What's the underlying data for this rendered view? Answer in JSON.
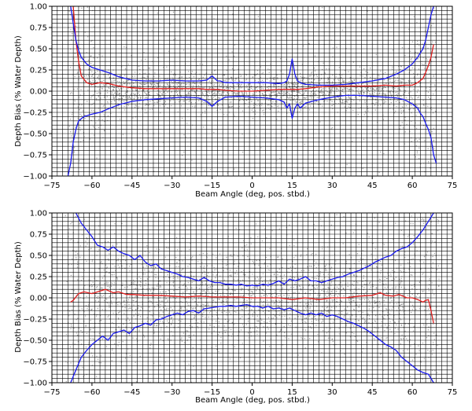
{
  "colors": {
    "scatter": "#808080",
    "mean_line": "#e02020",
    "std_lines": "#1a1aee",
    "grid": "#000000",
    "background": "#ffffff"
  },
  "chart_data": [
    {
      "type": "scatter",
      "xlabel": "Beam Angle (deg, pos. stbd.)",
      "ylabel": "Depth Bias (% Water Depth)",
      "xlim": [
        -75,
        75
      ],
      "ylim": [
        -1.0,
        1.0
      ],
      "xticks": [
        -75,
        -60,
        -45,
        -30,
        -15,
        0,
        15,
        30,
        45,
        60,
        75
      ],
      "xtick_labels": [
        "−75",
        "−60",
        "−45",
        "−30",
        "−15",
        "0",
        "15",
        "30",
        "45",
        "60",
        "75"
      ],
      "yticks": [
        -1.0,
        -0.75,
        -0.5,
        -0.25,
        0.0,
        0.25,
        0.5,
        0.75,
        1.0
      ],
      "ytick_labels": [
        "−1.00",
        "−0.75",
        "−0.50",
        "−0.25",
        "0.00",
        "0.25",
        "0.50",
        "0.75",
        "1.00"
      ],
      "grid": "on (vertical every 2 deg, horizontal every 0.05)",
      "scatter_extent_deg": [
        -69,
        69
      ],
      "series": [
        {
          "style": "line",
          "color": "#e02020",
          "x": [
            -67,
            -66,
            -65,
            -64,
            -62,
            -60,
            -57,
            -54,
            -50,
            -45,
            -40,
            -35,
            -30,
            -25,
            -20,
            -17,
            -15,
            -13,
            -10,
            -5,
            0,
            5,
            10,
            13,
            15,
            17,
            20,
            25,
            30,
            35,
            40,
            45,
            50,
            54,
            57,
            60,
            62,
            64,
            65,
            66,
            67,
            68
          ],
          "y": [
            1.0,
            0.6,
            0.35,
            0.18,
            0.1,
            0.08,
            0.1,
            0.09,
            0.06,
            0.04,
            0.03,
            0.03,
            0.03,
            0.03,
            0.03,
            0.02,
            0.02,
            0.02,
            0.01,
            0.0,
            0.0,
            0.01,
            0.02,
            0.02,
            0.02,
            0.02,
            0.03,
            0.05,
            0.06,
            0.06,
            0.06,
            0.06,
            0.07,
            0.06,
            0.07,
            0.07,
            0.1,
            0.15,
            0.22,
            0.3,
            0.4,
            0.55
          ]
        },
        {
          "style": "line",
          "color": "#1a1aee",
          "x": [
            -68,
            -67,
            -66,
            -65,
            -64,
            -62,
            -60,
            -57,
            -54,
            -50,
            -45,
            -40,
            -35,
            -30,
            -25,
            -20,
            -17,
            -15,
            -13,
            -12,
            -10,
            -5,
            0,
            5,
            10,
            12,
            13,
            14,
            15,
            16,
            17,
            18,
            20,
            25,
            30,
            35,
            40,
            45,
            50,
            54,
            57,
            60,
            62,
            64,
            65,
            66,
            67,
            68
          ],
          "y": [
            1.0,
            0.8,
            0.6,
            0.48,
            0.4,
            0.32,
            0.28,
            0.25,
            0.22,
            0.17,
            0.13,
            0.12,
            0.12,
            0.13,
            0.12,
            0.12,
            0.13,
            0.18,
            0.12,
            0.12,
            0.1,
            0.1,
            0.1,
            0.1,
            0.09,
            0.1,
            0.12,
            0.2,
            0.38,
            0.2,
            0.12,
            0.1,
            0.08,
            0.07,
            0.07,
            0.08,
            0.1,
            0.12,
            0.15,
            0.2,
            0.25,
            0.32,
            0.4,
            0.5,
            0.6,
            0.75,
            0.9,
            1.0
          ]
        },
        {
          "style": "line",
          "color": "#1a1aee",
          "x": [
            -69,
            -68,
            -67,
            -66,
            -65,
            -63,
            -60,
            -57,
            -54,
            -50,
            -45,
            -40,
            -35,
            -30,
            -25,
            -20,
            -17,
            -15,
            -13,
            -10,
            -5,
            0,
            5,
            10,
            12,
            13,
            14,
            15,
            16,
            17,
            18,
            20,
            25,
            30,
            35,
            40,
            45,
            50,
            54,
            57,
            60,
            62,
            63,
            64,
            65,
            66,
            67,
            68,
            69
          ],
          "y": [
            -1.0,
            -0.85,
            -0.6,
            -0.45,
            -0.35,
            -0.3,
            -0.27,
            -0.25,
            -0.21,
            -0.16,
            -0.12,
            -0.1,
            -0.09,
            -0.08,
            -0.07,
            -0.08,
            -0.12,
            -0.18,
            -0.12,
            -0.07,
            -0.06,
            -0.07,
            -0.08,
            -0.1,
            -0.13,
            -0.2,
            -0.15,
            -0.32,
            -0.2,
            -0.15,
            -0.2,
            -0.14,
            -0.1,
            -0.07,
            -0.05,
            -0.05,
            -0.06,
            -0.07,
            -0.08,
            -0.1,
            -0.15,
            -0.2,
            -0.26,
            -0.3,
            -0.38,
            -0.45,
            -0.55,
            -0.75,
            -0.85
          ]
        }
      ]
    },
    {
      "type": "scatter",
      "xlabel": "Beam Angle (deg, pos. stbd.)",
      "ylabel": "Depth Bias (% Water Depth)",
      "xlim": [
        -75,
        75
      ],
      "ylim": [
        -1.0,
        1.0
      ],
      "xticks": [
        -75,
        -60,
        -45,
        -30,
        -15,
        0,
        15,
        30,
        45,
        60,
        75
      ],
      "xtick_labels": [
        "−75",
        "−60",
        "−45",
        "−30",
        "−15",
        "0",
        "15",
        "30",
        "45",
        "60",
        "75"
      ],
      "yticks": [
        -1.0,
        -0.75,
        -0.5,
        -0.25,
        0.0,
        0.25,
        0.5,
        0.75,
        1.0
      ],
      "ytick_labels": [
        "−1.00",
        "−0.75",
        "−0.50",
        "−0.25",
        "0.00",
        "0.25",
        "0.50",
        "0.75",
        "1.00"
      ],
      "grid": "on (vertical every 2 deg, horizontal every 0.05)",
      "scatter_extent_deg": [
        -70,
        70
      ],
      "series": [
        {
          "style": "line",
          "color": "#e02020",
          "x": [
            -68,
            -67,
            -65,
            -63,
            -60,
            -57,
            -55,
            -52,
            -50,
            -47,
            -45,
            -40,
            -35,
            -30,
            -25,
            -20,
            -15,
            -10,
            -5,
            0,
            5,
            10,
            15,
            20,
            25,
            30,
            35,
            40,
            45,
            48,
            50,
            53,
            55,
            58,
            60,
            62,
            64,
            65,
            66,
            67,
            68
          ],
          "y": [
            -0.05,
            -0.03,
            0.05,
            0.07,
            0.05,
            0.08,
            0.1,
            0.06,
            0.07,
            0.04,
            0.04,
            0.03,
            0.03,
            0.02,
            0.01,
            0.02,
            0.01,
            0.01,
            0.01,
            0.0,
            0.0,
            0.0,
            -0.02,
            0.0,
            -0.02,
            0.0,
            0.0,
            0.02,
            0.03,
            0.06,
            0.03,
            0.02,
            0.04,
            0.0,
            0.0,
            -0.02,
            -0.05,
            -0.03,
            -0.02,
            -0.15,
            -0.3
          ]
        },
        {
          "style": "line",
          "color": "#1a1aee",
          "x": [
            -66,
            -64,
            -62,
            -60,
            -58,
            -56,
            -54,
            -52,
            -50,
            -48,
            -46,
            -44,
            -42,
            -40,
            -38,
            -36,
            -34,
            -32,
            -30,
            -28,
            -26,
            -24,
            -22,
            -20,
            -18,
            -16,
            -14,
            -12,
            -10,
            -8,
            -6,
            -4,
            -2,
            0,
            2,
            4,
            6,
            8,
            10,
            12,
            14,
            16,
            18,
            20,
            22,
            24,
            26,
            28,
            30,
            32,
            34,
            36,
            38,
            40,
            42,
            44,
            46,
            48,
            50,
            52,
            54,
            56,
            58,
            60,
            62,
            64,
            66,
            68
          ],
          "y": [
            1.0,
            0.88,
            0.8,
            0.72,
            0.62,
            0.6,
            0.56,
            0.6,
            0.55,
            0.52,
            0.5,
            0.45,
            0.5,
            0.42,
            0.38,
            0.4,
            0.34,
            0.32,
            0.3,
            0.28,
            0.25,
            0.24,
            0.22,
            0.2,
            0.24,
            0.2,
            0.18,
            0.18,
            0.16,
            0.16,
            0.15,
            0.16,
            0.14,
            0.15,
            0.14,
            0.16,
            0.15,
            0.17,
            0.2,
            0.16,
            0.22,
            0.2,
            0.22,
            0.25,
            0.2,
            0.2,
            0.18,
            0.2,
            0.22,
            0.24,
            0.25,
            0.28,
            0.3,
            0.32,
            0.35,
            0.38,
            0.42,
            0.45,
            0.48,
            0.5,
            0.55,
            0.58,
            0.6,
            0.65,
            0.72,
            0.8,
            0.9,
            1.0
          ]
        },
        {
          "style": "line",
          "color": "#1a1aee",
          "x": [
            -68,
            -66,
            -64,
            -62,
            -60,
            -58,
            -56,
            -54,
            -52,
            -50,
            -48,
            -46,
            -44,
            -42,
            -40,
            -38,
            -36,
            -34,
            -32,
            -30,
            -28,
            -26,
            -24,
            -22,
            -20,
            -18,
            -16,
            -14,
            -12,
            -10,
            -8,
            -6,
            -4,
            -2,
            0,
            2,
            4,
            6,
            8,
            10,
            12,
            14,
            16,
            18,
            20,
            22,
            24,
            26,
            28,
            30,
            32,
            34,
            36,
            38,
            40,
            42,
            44,
            46,
            48,
            50,
            52,
            54,
            56,
            58,
            60,
            62,
            64,
            66,
            68
          ],
          "y": [
            -1.0,
            -0.85,
            -0.7,
            -0.62,
            -0.55,
            -0.5,
            -0.45,
            -0.5,
            -0.42,
            -0.4,
            -0.38,
            -0.42,
            -0.35,
            -0.33,
            -0.3,
            -0.32,
            -0.26,
            -0.25,
            -0.22,
            -0.2,
            -0.18,
            -0.2,
            -0.16,
            -0.15,
            -0.18,
            -0.13,
            -0.12,
            -0.11,
            -0.1,
            -0.1,
            -0.09,
            -0.1,
            -0.09,
            -0.08,
            -0.1,
            -0.1,
            -0.12,
            -0.1,
            -0.13,
            -0.12,
            -0.14,
            -0.12,
            -0.15,
            -0.18,
            -0.2,
            -0.18,
            -0.2,
            -0.18,
            -0.22,
            -0.2,
            -0.22,
            -0.25,
            -0.28,
            -0.3,
            -0.33,
            -0.36,
            -0.4,
            -0.45,
            -0.5,
            -0.55,
            -0.58,
            -0.62,
            -0.7,
            -0.75,
            -0.8,
            -0.85,
            -0.88,
            -0.9,
            -1.0
          ]
        }
      ]
    }
  ]
}
